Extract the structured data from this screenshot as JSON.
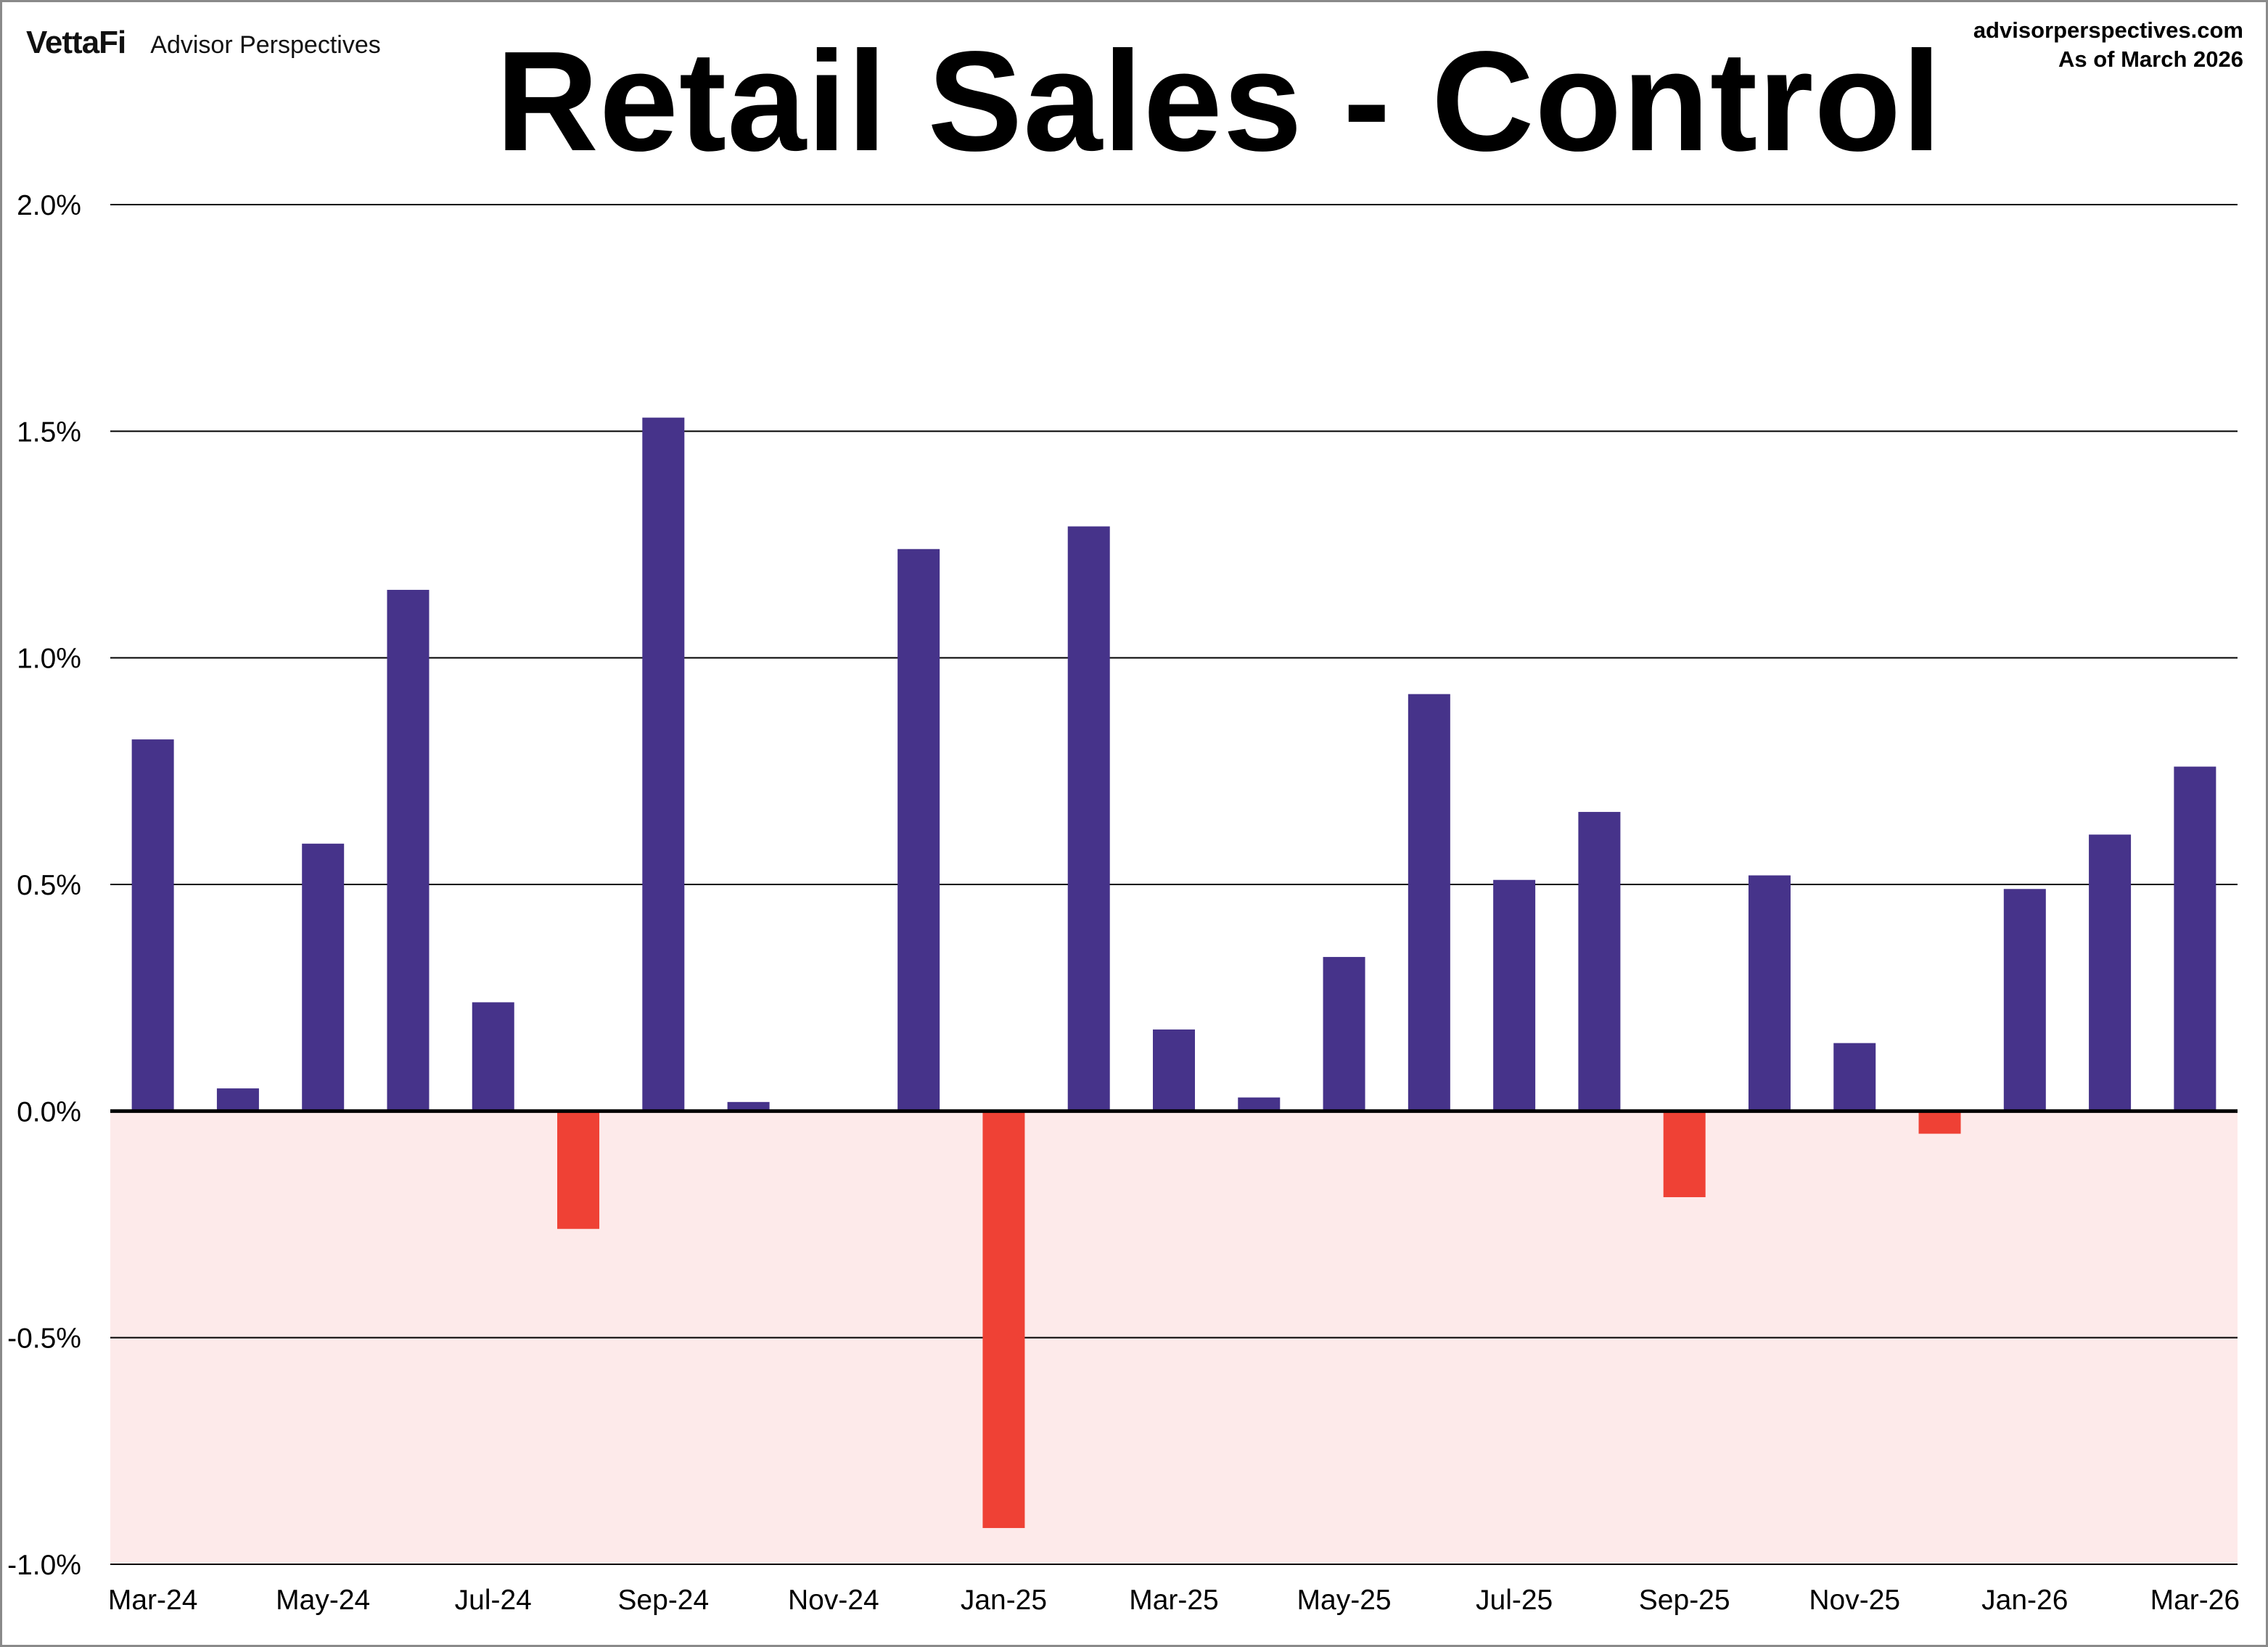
{
  "header": {
    "brand_logo": "VettaFi",
    "brand_name": "Advisor Perspectives",
    "source_url": "advisorperspectives.com",
    "as_of": "As of March 2026"
  },
  "chart_data": {
    "type": "bar",
    "title": "Retail Sales - Control",
    "xlabel": "",
    "ylabel": "",
    "ylim": [
      -1.0,
      2.0
    ],
    "yticks": [
      2.0,
      1.5,
      1.0,
      0.5,
      0.0,
      -0.5,
      -1.0
    ],
    "ytick_labels": [
      "2.0%",
      "1.5%",
      "1.0%",
      "0.5%",
      "0.0%",
      "-0.5%",
      "-1.0%"
    ],
    "grid": true,
    "categories": [
      "Mar-24",
      "Apr-24",
      "May-24",
      "Jun-24",
      "Jul-24",
      "Aug-24",
      "Sep-24",
      "Oct-24",
      "Nov-24",
      "Dec-24",
      "Jan-25",
      "Feb-25",
      "Mar-25",
      "Apr-25",
      "May-25",
      "Jun-25",
      "Jul-25",
      "Aug-25",
      "Sep-25",
      "Oct-25",
      "Nov-25",
      "Dec-25",
      "Jan-26",
      "Feb-26",
      "Mar-26"
    ],
    "xtick_labels": [
      "Mar-24",
      "May-24",
      "Jul-24",
      "Sep-24",
      "Nov-24",
      "Jan-25",
      "Mar-25",
      "May-25",
      "Jul-25",
      "Sep-25",
      "Nov-25",
      "Jan-26",
      "Mar-26"
    ],
    "values": [
      0.82,
      0.05,
      0.59,
      1.15,
      0.24,
      -0.26,
      1.53,
      0.02,
      0.0,
      1.24,
      -0.92,
      1.29,
      0.18,
      0.03,
      0.34,
      0.92,
      0.51,
      0.66,
      -0.19,
      0.52,
      0.15,
      -0.05,
      0.49,
      0.61,
      0.76
    ],
    "colors": {
      "positive": "#46338A",
      "negative": "#EF4135",
      "negative_zone": "#FDEAEA"
    }
  }
}
